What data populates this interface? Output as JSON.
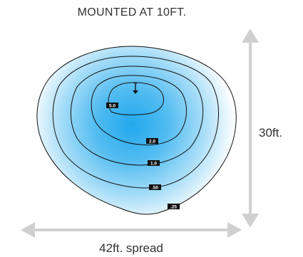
{
  "title": "MOUNTED AT 10FT.",
  "depth_label": "30ft.",
  "spread_label": "42ft. spread",
  "colors": {
    "contour_stroke": "#111111",
    "glow_inner": "#22a8ee",
    "glow_outer": "#e4f5fd",
    "arrow_fill": "#d0d0d0",
    "label_bg": "#111111",
    "text": "#333333"
  },
  "contours": [
    {
      "label": ".25",
      "icon": "outer-contour"
    },
    {
      "label": ".50",
      "icon": "contour"
    },
    {
      "label": "1.0",
      "icon": "contour"
    },
    {
      "label": "2.0",
      "icon": "contour"
    },
    {
      "label": "5.0",
      "icon": "inner-contour"
    }
  ],
  "icons": {
    "mount": "mount-point-arrow-icon",
    "depth_arrow": "double-arrow-vertical-icon",
    "spread_arrow": "double-arrow-horizontal-icon"
  }
}
